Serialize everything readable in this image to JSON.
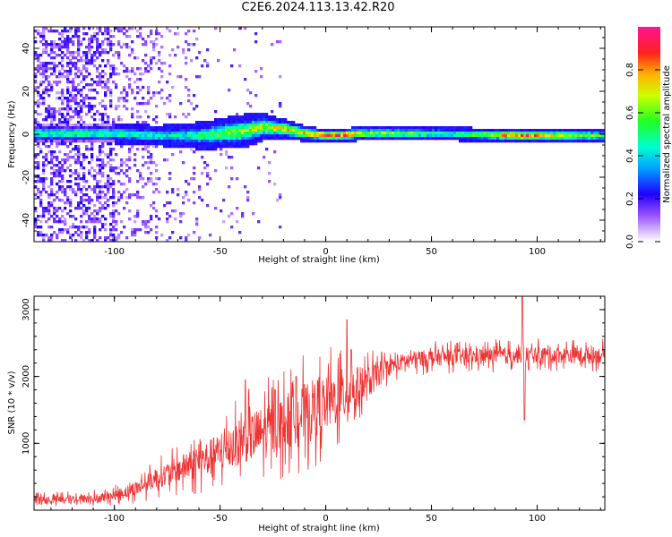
{
  "title": "C2E6.2024.113.13.42.R20",
  "chart_data": [
    {
      "type": "heatmap",
      "xlabel": "Height of straight line (km)",
      "ylabel": "Frequency (Hz)",
      "xlim": [
        -138,
        132
      ],
      "ylim": [
        -50,
        50
      ],
      "xticks": [
        -100,
        -50,
        0,
        50,
        100
      ],
      "yticks": [
        -40,
        -20,
        0,
        20,
        40
      ],
      "colorbar": {
        "label": "Normalized spectral amplitude",
        "range": [
          0,
          1
        ],
        "ticks": [
          "0.0",
          "0.2",
          "0.4",
          "0.6",
          "0.8"
        ]
      },
      "band_center_hz": [
        [
          -100,
          1
        ],
        [
          -80,
          0
        ],
        [
          -60,
          0
        ],
        [
          -40,
          2
        ],
        [
          -30,
          4
        ],
        [
          -20,
          3
        ],
        [
          -10,
          1
        ],
        [
          0,
          0
        ],
        [
          20,
          1
        ],
        [
          50,
          1
        ],
        [
          90,
          0
        ],
        [
          132,
          0
        ]
      ],
      "band_halfwidth_hz": [
        [
          -100,
          3
        ],
        [
          -80,
          3
        ],
        [
          -60,
          4
        ],
        [
          -40,
          5
        ],
        [
          -20,
          3
        ],
        [
          -5,
          2
        ],
        [
          10,
          2
        ],
        [
          132,
          2
        ]
      ],
      "band_peak_amplitude": [
        [
          -100,
          0.5
        ],
        [
          -70,
          0.45
        ],
        [
          -50,
          0.6
        ],
        [
          -30,
          0.7
        ],
        [
          -10,
          0.8
        ],
        [
          0,
          0.95
        ],
        [
          10,
          0.9
        ],
        [
          20,
          0.7
        ],
        [
          60,
          0.5
        ],
        [
          92,
          0.9
        ],
        [
          132,
          0.55
        ]
      ]
    },
    {
      "type": "line",
      "xlabel": "Height of straight line (km)",
      "ylabel": "SNR (10 * v/v)",
      "xlim": [
        -138,
        132
      ],
      "ylim": [
        0,
        3200
      ],
      "xticks": [
        -100,
        -50,
        0,
        50,
        100
      ],
      "yticks": [
        1000,
        2000,
        3000
      ],
      "color": "#ee3333",
      "series": [
        {
          "trend": [
            [
              -138,
              150
            ],
            [
              -110,
              170
            ],
            [
              -100,
              220
            ],
            [
              -90,
              320
            ],
            [
              -80,
              480
            ],
            [
              -70,
              600
            ],
            [
              -60,
              720
            ],
            [
              -50,
              850
            ],
            [
              -40,
              1050
            ],
            [
              -30,
              1150
            ],
            [
              -20,
              1300
            ],
            [
              -10,
              1450
            ],
            [
              0,
              1600
            ],
            [
              10,
              1750
            ],
            [
              20,
              1900
            ],
            [
              25,
              2050
            ],
            [
              30,
              2150
            ],
            [
              40,
              2250
            ],
            [
              50,
              2280
            ],
            [
              70,
              2300
            ],
            [
              90,
              2320
            ],
            [
              110,
              2320
            ],
            [
              132,
              2320
            ]
          ],
          "noise": [
            [
              -138,
              120
            ],
            [
              -100,
              150
            ],
            [
              -80,
              300
            ],
            [
              -50,
              600
            ],
            [
              -30,
              800
            ],
            [
              -10,
              900
            ],
            [
              10,
              800
            ],
            [
              20,
              500
            ],
            [
              30,
              250
            ],
            [
              132,
              250
            ]
          ],
          "spikes": [
            [
              -38,
              1950
            ],
            [
              -24,
              1800
            ],
            [
              -14,
              2000
            ],
            [
              0,
              1500
            ],
            [
              10,
              2850
            ],
            [
              12,
              2400
            ],
            [
              93,
              3200
            ],
            [
              94,
              1350
            ],
            [
              96,
              2100
            ]
          ]
        }
      ]
    }
  ]
}
